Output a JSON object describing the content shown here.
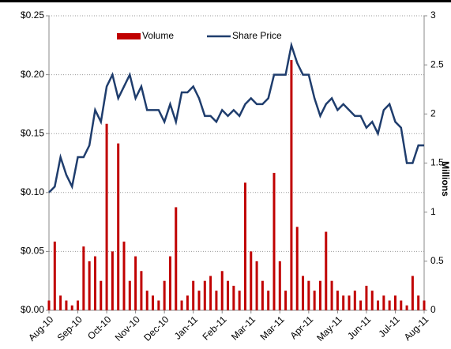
{
  "chart_data": {
    "type": "bar_line",
    "categories": [
      "Aug-10",
      null,
      null,
      null,
      null,
      "Sep-10",
      null,
      null,
      null,
      null,
      "Oct-10",
      null,
      null,
      null,
      null,
      "Nov-10",
      null,
      null,
      null,
      null,
      "Dec-10",
      null,
      null,
      null,
      null,
      "Jan-11",
      null,
      null,
      null,
      null,
      "Feb-11",
      null,
      null,
      null,
      null,
      "Mar-11",
      null,
      null,
      null,
      null,
      "Mar-11",
      null,
      null,
      null,
      null,
      "Apr-11",
      null,
      null,
      null,
      null,
      "May-11",
      null,
      null,
      null,
      null,
      "Jun-11",
      null,
      null,
      null,
      null,
      "Jul-11",
      null,
      null,
      null,
      null,
      "Aug-11"
    ],
    "series": [
      {
        "name": "Volume",
        "color": "#c00000",
        "axis": "y2",
        "kind": "bar",
        "values": [
          0.1,
          0.7,
          0.15,
          0.1,
          0.05,
          0.1,
          0.65,
          0.5,
          0.55,
          0.3,
          1.9,
          0.6,
          1.7,
          0.7,
          0.3,
          0.55,
          0.4,
          0.2,
          0.15,
          0.1,
          0.3,
          0.55,
          1.05,
          0.1,
          0.15,
          0.3,
          0.2,
          0.3,
          0.35,
          0.2,
          0.4,
          0.3,
          0.25,
          0.2,
          1.3,
          0.6,
          0.5,
          0.3,
          0.2,
          1.4,
          0.5,
          0.2,
          2.55,
          0.85,
          0.35,
          0.3,
          0.2,
          0.3,
          0.8,
          0.3,
          0.2,
          0.15,
          0.15,
          0.2,
          0.1,
          0.25,
          0.2,
          0.1,
          0.15,
          0.1,
          0.15,
          0.1,
          0.05,
          0.35,
          0.15,
          0.1
        ]
      },
      {
        "name": "Share Price",
        "color": "#1f3d6d",
        "axis": "y",
        "kind": "line",
        "values": [
          0.1,
          0.105,
          0.13,
          0.115,
          0.105,
          0.13,
          0.13,
          0.14,
          0.17,
          0.16,
          0.19,
          0.2,
          0.18,
          0.19,
          0.2,
          0.18,
          0.19,
          0.17,
          0.17,
          0.17,
          0.16,
          0.175,
          0.16,
          0.185,
          0.185,
          0.19,
          0.18,
          0.165,
          0.165,
          0.16,
          0.17,
          0.165,
          0.17,
          0.165,
          0.175,
          0.18,
          0.175,
          0.175,
          0.18,
          0.2,
          0.2,
          0.2,
          0.225,
          0.21,
          0.2,
          0.2,
          0.18,
          0.165,
          0.175,
          0.18,
          0.17,
          0.175,
          0.17,
          0.165,
          0.165,
          0.155,
          0.16,
          0.15,
          0.17,
          0.175,
          0.16,
          0.155,
          0.125,
          0.125,
          0.14,
          0.14
        ]
      }
    ],
    "ylim": [
      0,
      0.25
    ],
    "yticks": [
      {
        "value": 0,
        "label": "$0.00"
      },
      {
        "value": 0.05,
        "label": "$0.05"
      },
      {
        "value": 0.1,
        "label": "$0.10"
      },
      {
        "value": 0.15,
        "label": "$0.15"
      },
      {
        "value": 0.2,
        "label": "$0.20"
      },
      {
        "value": 0.25,
        "label": "$0.25"
      }
    ],
    "y2lim": [
      0,
      3
    ],
    "y2ticks": [
      0,
      0.5,
      1,
      1.5,
      2,
      2.5,
      3
    ],
    "y2label": "Millions",
    "grid": true
  }
}
